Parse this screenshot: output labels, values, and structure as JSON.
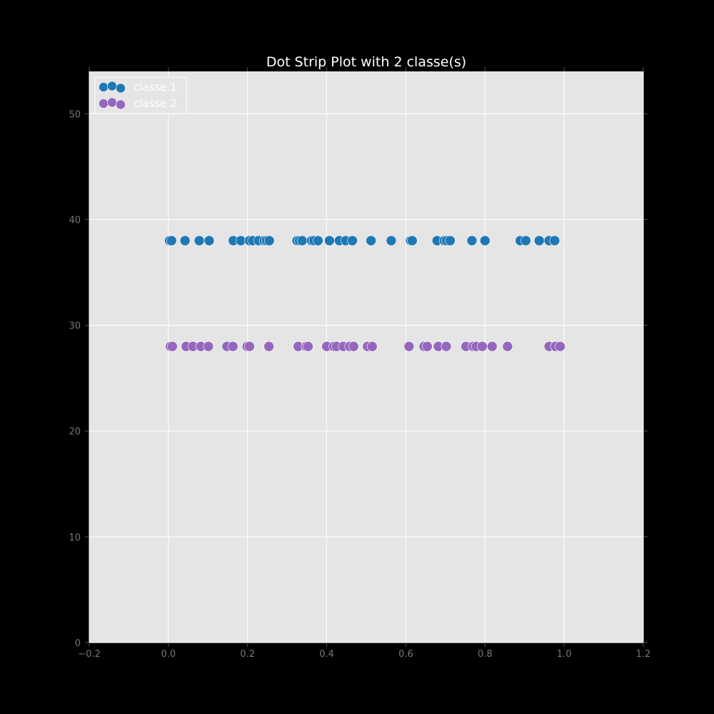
{
  "chart_data": {
    "type": "scatter",
    "title": "Dot Strip Plot with 2 classe(s)",
    "xlabel": "",
    "ylabel": "",
    "xlim": [
      -0.2,
      1.2
    ],
    "ylim": [
      0,
      54
    ],
    "xticks": [
      -0.2,
      0.0,
      0.2,
      0.4,
      0.6,
      0.8,
      1.0,
      1.2
    ],
    "yticks": [
      0,
      10,
      20,
      30,
      40,
      50
    ],
    "xtick_labels": [
      "−0.2",
      "0.0",
      "0.2",
      "0.4",
      "0.6",
      "0.8",
      "1.0",
      "1.2"
    ],
    "ytick_labels": [
      "0",
      "10",
      "20",
      "30",
      "40",
      "50"
    ],
    "grid": true,
    "legend_position": "top-left",
    "colors": {
      "background": "#000000",
      "plot_background": "#e5e5e5",
      "grid": "#ffffff",
      "tick_text": "#777777",
      "title_text": "#ffffff"
    },
    "series": [
      {
        "name": "classe 1",
        "color": "#1f77b4",
        "y": 38,
        "x": [
          0.003,
          0.008,
          0.042,
          0.078,
          0.103,
          0.164,
          0.183,
          0.205,
          0.213,
          0.228,
          0.242,
          0.248,
          0.255,
          0.325,
          0.331,
          0.338,
          0.362,
          0.368,
          0.378,
          0.407,
          0.432,
          0.448,
          0.465,
          0.512,
          0.563,
          0.612,
          0.616,
          0.679,
          0.697,
          0.703,
          0.712,
          0.767,
          0.8,
          0.889,
          0.903,
          0.937,
          0.962,
          0.976
        ]
      },
      {
        "name": "classe 2",
        "color": "#9467bd",
        "y": 28,
        "x": [
          0.005,
          0.01,
          0.045,
          0.062,
          0.082,
          0.101,
          0.148,
          0.163,
          0.199,
          0.205,
          0.254,
          0.328,
          0.348,
          0.353,
          0.4,
          0.418,
          0.425,
          0.442,
          0.458,
          0.468,
          0.503,
          0.515,
          0.608,
          0.646,
          0.654,
          0.682,
          0.702,
          0.752,
          0.77,
          0.778,
          0.793,
          0.818,
          0.857,
          0.962,
          0.978,
          0.99
        ]
      }
    ]
  }
}
